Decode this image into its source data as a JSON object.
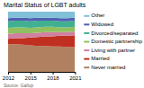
{
  "chart_data": {
    "type": "area",
    "stacked": true,
    "title": "Marital Status of LGBT adults",
    "annotations": [
      "Source: Gallup"
    ],
    "x": [
      2012,
      2013,
      2014,
      2015,
      2016,
      2017,
      2018,
      2019,
      2020,
      2021
    ],
    "series": [
      {
        "name": "Never married",
        "color": "#b08060",
        "values": [
          46,
          46,
          45,
          44,
          43,
          43,
          42,
          42,
          41,
          41
        ]
      },
      {
        "name": "Married",
        "color": "#c03020",
        "values": [
          9,
          10,
          11,
          13,
          15,
          16,
          17,
          18,
          19,
          20
        ]
      },
      {
        "name": "Living with partner",
        "color": "#d080a0",
        "values": [
          8,
          8,
          8,
          7,
          7,
          7,
          7,
          6,
          6,
          6
        ]
      },
      {
        "name": "Domestic partnership",
        "color": "#90c060",
        "values": [
          10,
          10,
          10,
          9,
          9,
          9,
          9,
          8,
          8,
          8
        ]
      },
      {
        "name": "Divorced/separated",
        "color": "#40b090",
        "values": [
          11,
          11,
          11,
          11,
          11,
          10,
          10,
          10,
          10,
          10
        ]
      },
      {
        "name": "Widowed",
        "color": "#5060b0",
        "values": [
          5,
          5,
          5,
          5,
          5,
          5,
          5,
          5,
          5,
          5
        ]
      },
      {
        "name": "Other",
        "color": "#80c0d8",
        "values": [
          11,
          10,
          10,
          11,
          10,
          10,
          10,
          11,
          11,
          10
        ]
      }
    ],
    "xlim": [
      2012,
      2021
    ],
    "ylim": [
      0,
      100
    ],
    "xticks": [
      2012,
      2015,
      2018,
      2021
    ],
    "tick_labels": "x",
    "legend": "right"
  }
}
